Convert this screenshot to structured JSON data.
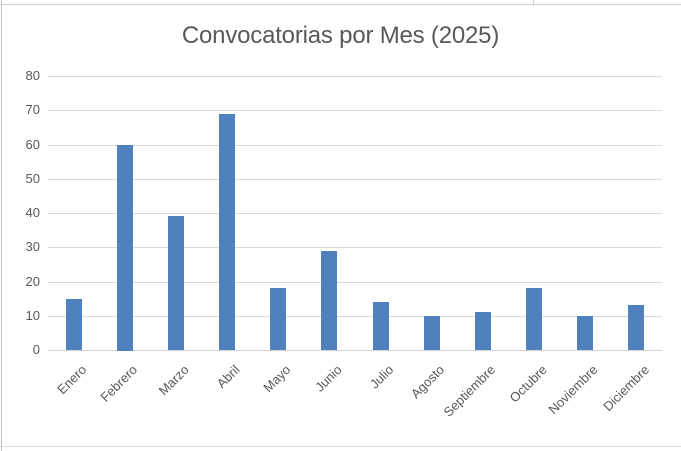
{
  "chart_data": {
    "type": "bar",
    "title": "Convocatorias por Mes (2025)",
    "categories": [
      "Enero",
      "Febrero",
      "Marzo",
      "Abril",
      "Mayo",
      "Junio",
      "Julio",
      "Agosto",
      "Septiembre",
      "Octubre",
      "Noviembre",
      "Diciembre"
    ],
    "values": [
      15,
      60,
      39,
      69,
      18,
      29,
      14,
      10,
      11,
      18,
      10,
      13
    ],
    "xlabel": "",
    "ylabel": "",
    "ylim": [
      0,
      80
    ],
    "yticks": [
      0,
      10,
      20,
      30,
      40,
      50,
      60,
      70,
      80
    ],
    "grid": true,
    "legend_position": "none",
    "bar_color": "#4e81bd"
  },
  "colors": {
    "text": "#595959",
    "gridline": "#d9d9d9",
    "bar": "#4e81bd",
    "worksheet_line": "#d0d0d0"
  }
}
